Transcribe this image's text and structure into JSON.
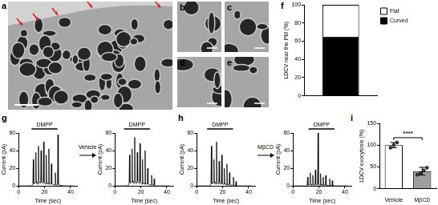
{
  "panel_labels": [
    "a",
    "b",
    "c",
    "d",
    "e",
    "f",
    "g",
    "h",
    "i"
  ],
  "transitions": [
    {
      "panel": "g",
      "label": "Vehicle"
    },
    {
      "panel": "h",
      "label": "MβCD"
    }
  ],
  "chart_data": [
    {
      "panel": "f",
      "type": "bar",
      "stacked": true,
      "categories": [
        null
      ],
      "series": [
        {
          "name": "Curved",
          "color": "#000000",
          "values": [
            65
          ]
        },
        {
          "name": "Flat",
          "color": "#ffffff",
          "values": [
            35
          ]
        }
      ],
      "ylabel": "LDCV near the PM (%)",
      "ylim": [
        0,
        100
      ],
      "yticks": [
        0,
        20,
        40,
        60,
        80,
        100
      ],
      "legend": "upper right",
      "grid": false
    },
    {
      "panel": "g",
      "type": "line",
      "color": "#000000",
      "x": [
        0,
        5,
        10,
        11,
        11.3,
        11.6,
        12,
        13,
        13.3,
        13.6,
        14,
        15,
        15.3,
        15.6,
        16,
        17,
        17.3,
        17.6,
        18,
        19,
        19.3,
        19.6,
        20,
        21,
        21.3,
        21.6,
        22,
        23,
        23.3,
        23.6,
        24,
        25,
        25.3,
        25.6,
        26,
        28,
        28.3,
        28.6,
        29,
        30,
        30.3,
        30.6,
        31,
        35,
        42
      ],
      "values": [
        0,
        0,
        0,
        2,
        30,
        3,
        2,
        4,
        38,
        5,
        3,
        2,
        45,
        6,
        4,
        3,
        40,
        5,
        4,
        3,
        50,
        4,
        3,
        2,
        35,
        4,
        3,
        2,
        42,
        3,
        2,
        2,
        25,
        3,
        2,
        1,
        15,
        2,
        1,
        1,
        58,
        2,
        1,
        0,
        0
      ],
      "xlabel": "Time (sec)",
      "ylabel": "Current (pA)",
      "xlim": [
        0,
        45
      ],
      "xticks": [
        0,
        20,
        40
      ],
      "ylim": [
        0,
        60
      ],
      "yticks": [
        0,
        20,
        40,
        60
      ],
      "grid": false,
      "stimulus": {
        "label": "DMPP",
        "start": 10,
        "end": 30
      }
    },
    {
      "panel": "g",
      "type": "line",
      "color": "#000000",
      "x": [
        0,
        5,
        10,
        11,
        11.3,
        11.6,
        12,
        13,
        13.3,
        13.6,
        14,
        15,
        15.3,
        15.6,
        16,
        17,
        17.3,
        17.6,
        18,
        19,
        19.3,
        19.6,
        20,
        21,
        21.3,
        21.6,
        22,
        23,
        23.3,
        23.6,
        24,
        25,
        25.3,
        25.6,
        26,
        28,
        28.3,
        28.6,
        29,
        30,
        30.3,
        30.6,
        31,
        35,
        42
      ],
      "values": [
        0,
        0,
        0,
        3,
        35,
        4,
        3,
        5,
        42,
        6,
        4,
        3,
        55,
        5,
        4,
        3,
        38,
        6,
        4,
        3,
        48,
        5,
        3,
        2,
        30,
        4,
        3,
        2,
        40,
        3,
        2,
        2,
        20,
        3,
        2,
        1,
        12,
        2,
        1,
        1,
        8,
        1,
        0,
        0,
        0
      ],
      "xlabel": "Time (sec)",
      "ylabel": "Current (pA)",
      "xlim": [
        0,
        45
      ],
      "xticks": [
        0,
        20,
        40
      ],
      "ylim": [
        0,
        60
      ],
      "yticks": [
        0,
        20,
        40,
        60
      ],
      "grid": false,
      "stimulus": {
        "label": "DMPP",
        "start": 7,
        "end": 27
      }
    },
    {
      "panel": "h",
      "type": "line",
      "color": "#000000",
      "x": [
        0,
        5,
        10,
        11,
        11.3,
        11.6,
        12,
        13,
        13.3,
        13.6,
        14,
        15,
        15.3,
        15.6,
        16,
        17,
        17.3,
        17.6,
        18,
        19,
        19.3,
        19.6,
        20,
        21,
        21.3,
        21.6,
        22,
        23,
        23.3,
        23.6,
        24,
        25,
        25.3,
        25.6,
        26,
        28,
        28.3,
        28.6,
        29,
        30,
        30.3,
        30.6,
        31,
        35,
        42
      ],
      "values": [
        0,
        0,
        0,
        2,
        45,
        3,
        2,
        4,
        30,
        5,
        3,
        2,
        50,
        4,
        3,
        2,
        28,
        4,
        3,
        2,
        35,
        3,
        2,
        2,
        20,
        3,
        2,
        1,
        25,
        2,
        1,
        1,
        15,
        2,
        1,
        1,
        10,
        1,
        1,
        0,
        5,
        0,
        0,
        0,
        0
      ],
      "xlabel": "Time (sec)",
      "ylabel": "Current (pA)",
      "xlim": [
        0,
        45
      ],
      "xticks": [
        0,
        20,
        40
      ],
      "ylim": [
        0,
        60
      ],
      "yticks": [
        0,
        20,
        40,
        60
      ],
      "grid": false,
      "stimulus": {
        "label": "DMPP",
        "start": 8,
        "end": 28
      }
    },
    {
      "panel": "h",
      "type": "line",
      "color": "#000000",
      "x": [
        0,
        5,
        10,
        11,
        11.3,
        11.6,
        12,
        13,
        13.3,
        13.6,
        14,
        15,
        15.3,
        15.6,
        16,
        17,
        17.3,
        17.6,
        18,
        19,
        19.3,
        19.6,
        20,
        21,
        21.3,
        21.6,
        22,
        23,
        23.3,
        23.6,
        24,
        25,
        25.3,
        25.6,
        26,
        28,
        28.3,
        28.6,
        29,
        30,
        30.3,
        30.6,
        31,
        35,
        42
      ],
      "values": [
        0,
        0,
        0,
        1,
        10,
        1,
        1,
        2,
        15,
        2,
        1,
        1,
        12,
        2,
        1,
        1,
        18,
        2,
        1,
        1,
        60,
        2,
        1,
        1,
        14,
        2,
        1,
        1,
        10,
        1,
        1,
        1,
        12,
        1,
        1,
        0,
        8,
        1,
        0,
        0,
        6,
        0,
        0,
        0,
        0
      ],
      "xlabel": "Time (sec)",
      "ylabel": "Current (pA)",
      "xlim": [
        0,
        45
      ],
      "xticks": [
        0,
        20,
        40
      ],
      "ylim": [
        0,
        60
      ],
      "yticks": [
        0,
        20,
        40,
        60
      ],
      "grid": false,
      "stimulus": {
        "label": "DMPP",
        "start": 12,
        "end": 32
      }
    },
    {
      "panel": "i",
      "type": "bar",
      "categories": [
        "Vehicle",
        "MβCD"
      ],
      "values": [
        100,
        40
      ],
      "colors": [
        "#ffffff",
        "#9e9e9e"
      ],
      "errors": [
        6,
        9
      ],
      "points": [
        [
          94,
          100,
          106
        ],
        [
          32,
          36,
          42,
          48
        ]
      ],
      "ylabel": "LDCV exocytosis (%)",
      "ylim": [
        0,
        150
      ],
      "yticks": [
        0,
        50,
        100,
        150
      ],
      "annotation": "****",
      "grid": false
    }
  ]
}
